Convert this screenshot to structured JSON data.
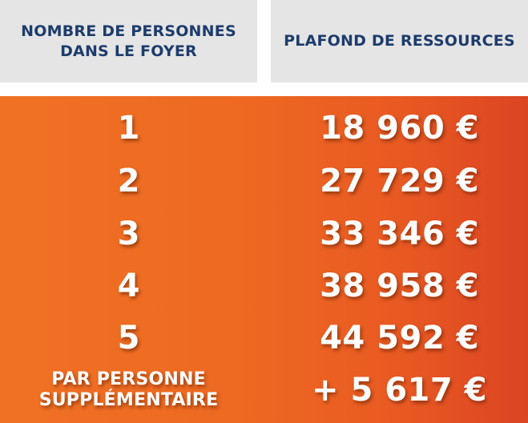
{
  "header": {
    "col1": "NOMBRE DE PERSONNES\nDANS LE FOYER",
    "col2": "PLAFOND DE RESSOURCES"
  },
  "rows": [
    {
      "persons": "1",
      "ceiling": "18 960 €"
    },
    {
      "persons": "2",
      "ceiling": "27 729 €"
    },
    {
      "persons": "3",
      "ceiling": "33 346 €"
    },
    {
      "persons": "4",
      "ceiling": "38 958 €"
    },
    {
      "persons": "5",
      "ceiling": "44 592 €"
    },
    {
      "persons": "PAR PERSONNE\nSUPPLÉMENTAIRE",
      "ceiling": "+ 5 617 €"
    }
  ],
  "colors": {
    "header_bg": "#e5e5e6",
    "header_text": "#1d3c6b",
    "panel_start": "#f07124",
    "panel_end": "#dc4423",
    "value_text": "#ffffff"
  }
}
